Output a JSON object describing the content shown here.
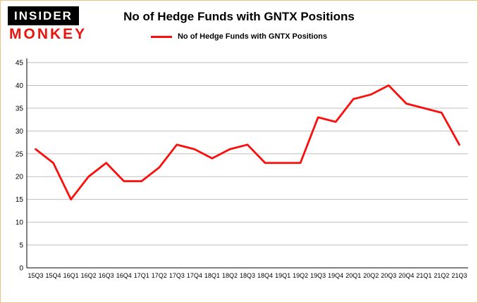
{
  "logo": {
    "line1": "INSIDER",
    "line2": "MONKEY"
  },
  "header": {
    "title": "No of Hedge Funds with GNTX Positions"
  },
  "legend": {
    "label": "No of Hedge Funds with GNTX Positions",
    "color": "#fa0f0c"
  },
  "chart_data": {
    "type": "line",
    "title": "No of Hedge Funds with GNTX Positions",
    "xlabel": "",
    "ylabel": "",
    "ylim": [
      0,
      45
    ],
    "ytick_step": 5,
    "grid": true,
    "legend_position": "top",
    "categories": [
      "15Q3",
      "15Q4",
      "16Q1",
      "16Q2",
      "16Q3",
      "16Q4",
      "17Q1",
      "17Q2",
      "17Q3",
      "17Q4",
      "18Q1",
      "18Q2",
      "18Q3",
      "18Q4",
      "19Q1",
      "19Q2",
      "19Q3",
      "19Q4",
      "20Q1",
      "20Q2",
      "20Q3",
      "20Q4",
      "21Q1",
      "21Q2",
      "21Q3"
    ],
    "series": [
      {
        "name": "No of Hedge Funds with GNTX Positions",
        "color": "#fa0f0c",
        "values": [
          26,
          23,
          15,
          20,
          23,
          19,
          19,
          22,
          27,
          26,
          24,
          26,
          27,
          23,
          23,
          23,
          33,
          32,
          37,
          38,
          40,
          36,
          35,
          34,
          27
        ]
      }
    ],
    "colors": {
      "grid": "#bfbfbf",
      "axis": "#000000",
      "background": "#ffffff"
    }
  }
}
